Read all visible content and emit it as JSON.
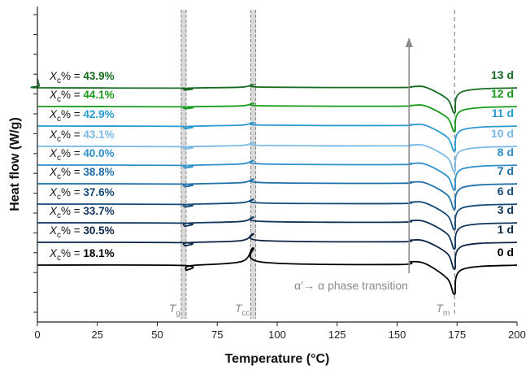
{
  "chart_data": {
    "type": "line",
    "xlabel": "Temperature (°C)",
    "ylabel": "Heat flow (W/g)",
    "xlim": [
      0,
      200
    ],
    "xticks": [
      "0",
      "25",
      "50",
      "75",
      "100",
      "125",
      "150",
      "175",
      "200"
    ],
    "grid": false,
    "legend": "none",
    "annotation": "α’→ α phase transition",
    "markers": [
      {
        "symbol": "T",
        "subscript": "g",
        "x": 61
      },
      {
        "symbol": "T",
        "subscript": "cc",
        "x": 90
      },
      {
        "symbol": "T",
        "subscript": "m",
        "x": 174
      }
    ],
    "series": [
      {
        "name": "0 d",
        "crystallinity": "18.1%",
        "color": "#000000",
        "x": [
          0,
          60,
          62,
          64,
          85,
          90,
          94,
          150,
          156,
          162,
          171,
          174,
          177,
          200
        ],
        "y": [
          0,
          -0.03,
          -0.45,
          -0.05,
          0.3,
          1.5,
          0.25,
          0.05,
          0.3,
          0.1,
          -1.2,
          -2.55,
          -0.4,
          0
        ]
      },
      {
        "name": "1 d",
        "crystallinity": "30.5%",
        "color": "#0b2545",
        "x": [
          0,
          60,
          61.5,
          63,
          85,
          90,
          94,
          150,
          156,
          162,
          171,
          174,
          177,
          200
        ],
        "y": [
          0,
          -0.03,
          -0.3,
          -0.03,
          0.15,
          0.75,
          0.15,
          0.05,
          0.2,
          0.08,
          -1.0,
          -2.35,
          -0.35,
          0
        ]
      },
      {
        "name": "3 d",
        "crystallinity": "33.7%",
        "color": "#11365e",
        "x": [
          0,
          60,
          61.5,
          63,
          85,
          90,
          94,
          150,
          156,
          162,
          171,
          174,
          177,
          200
        ],
        "y": [
          0,
          -0.03,
          -0.3,
          -0.03,
          0.12,
          0.5,
          0.12,
          0.05,
          0.2,
          0.08,
          -1.0,
          -2.3,
          -0.35,
          0
        ]
      },
      {
        "name": "6 d",
        "crystallinity": "37.6%",
        "color": "#164a76",
        "x": [
          0,
          60,
          61.5,
          63,
          85,
          90,
          94,
          150,
          156,
          162,
          171,
          174,
          177,
          200
        ],
        "y": [
          0,
          -0.03,
          -0.25,
          -0.03,
          0.12,
          0.42,
          0.1,
          0.05,
          0.18,
          0.08,
          -1.0,
          -2.25,
          -0.35,
          0
        ]
      },
      {
        "name": "7 d",
        "crystallinity": "38.8%",
        "color": "#1f6fa8",
        "x": [
          0,
          60,
          61.5,
          63,
          85,
          90,
          94,
          150,
          156,
          162,
          171,
          174,
          177,
          200
        ],
        "y": [
          0,
          -0.03,
          -0.25,
          -0.03,
          0.1,
          0.4,
          0.1,
          0.04,
          0.15,
          0.06,
          -1.0,
          -2.25,
          -0.35,
          0
        ]
      },
      {
        "name": "8 d",
        "crystallinity": "40.0%",
        "color": "#2f8fc9",
        "x": [
          0,
          60,
          61.5,
          63,
          85,
          90,
          94,
          150,
          156,
          162,
          171,
          174,
          177,
          200
        ],
        "y": [
          0,
          -0.03,
          -0.25,
          -0.03,
          0.1,
          0.4,
          0.1,
          0.04,
          0.15,
          0.06,
          -1.0,
          -2.2,
          -0.35,
          0
        ]
      },
      {
        "name": "10 d",
        "crystallinity": "43.1%",
        "color": "#7ab9e6",
        "x": [
          0,
          60,
          61.5,
          63,
          85,
          90,
          94,
          150,
          156,
          162,
          171,
          174,
          177,
          200
        ],
        "y": [
          0,
          -0.03,
          -0.22,
          -0.03,
          0.08,
          0.32,
          0.08,
          0.04,
          0.12,
          0.05,
          -1.0,
          -2.2,
          -0.35,
          0
        ]
      },
      {
        "name": "11 d",
        "crystallinity": "42.9%",
        "color": "#2a9bd0",
        "x": [
          0,
          60,
          61.5,
          63,
          85,
          90,
          94,
          150,
          156,
          162,
          171,
          174,
          177,
          200
        ],
        "y": [
          0,
          -0.03,
          -0.22,
          -0.03,
          0.08,
          0.3,
          0.08,
          0.04,
          0.12,
          0.05,
          -1.0,
          -2.2,
          -0.35,
          0
        ]
      },
      {
        "name": "12 d",
        "crystallinity": "44.1%",
        "color": "#1a9a1a",
        "x": [
          0,
          60,
          61.5,
          63,
          85,
          90,
          94,
          150,
          156,
          162,
          171,
          174,
          177,
          200
        ],
        "y": [
          0,
          -0.03,
          -0.2,
          -0.03,
          0.06,
          0.28,
          0.06,
          0.03,
          0.1,
          0.04,
          -1.0,
          -2.2,
          -0.35,
          0
        ]
      },
      {
        "name": "13 d",
        "crystallinity": "43.9%",
        "color": "#166b1f",
        "x": [
          0,
          0.8,
          2,
          60,
          61.5,
          63,
          85,
          90,
          94,
          150,
          156,
          162,
          171,
          174,
          177,
          200
        ],
        "y": [
          0.8,
          0.2,
          0,
          -0.03,
          -0.2,
          -0.03,
          0.06,
          0.28,
          0.06,
          0.03,
          0.1,
          0.04,
          -1.0,
          -2.2,
          -0.35,
          0
        ]
      }
    ]
  }
}
